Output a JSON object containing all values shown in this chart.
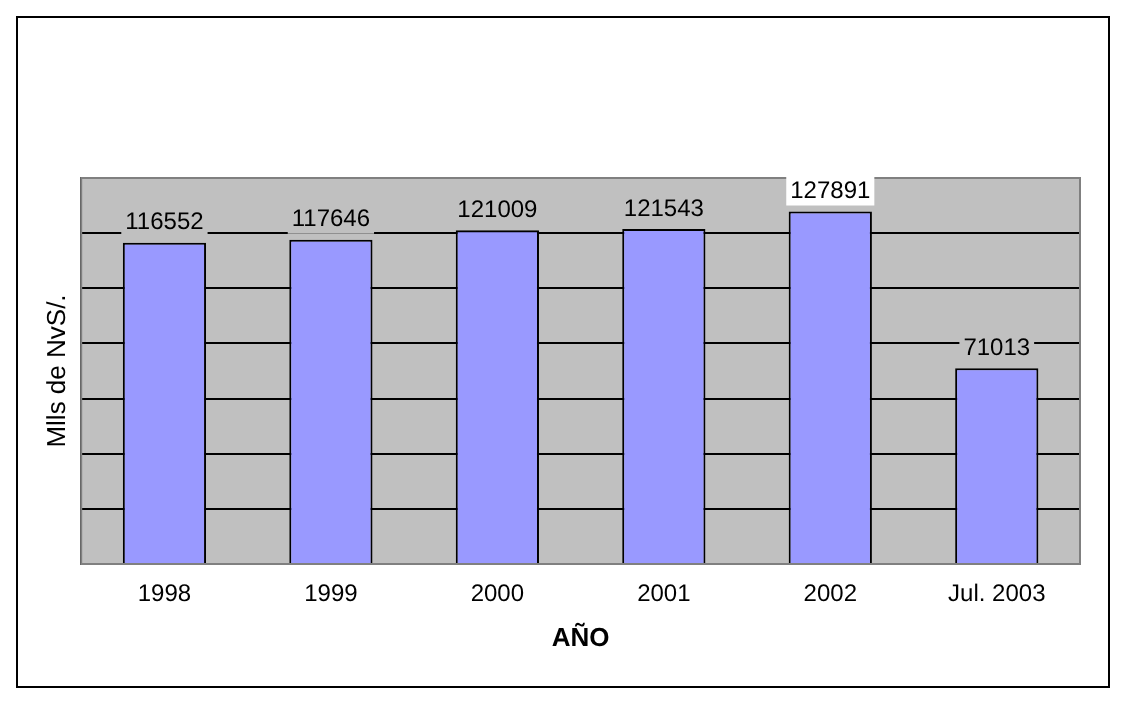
{
  "chart_data": {
    "type": "bar",
    "xlabel": "AÑO",
    "ylabel": "Mlls de NvS/.",
    "categories": [
      "1998",
      "1999",
      "2000",
      "2001",
      "2002",
      "Jul. 2003"
    ],
    "values": [
      116552,
      117646,
      121009,
      121543,
      127891,
      71013
    ],
    "color": "#9999ff",
    "ylim": [
      0,
      140000
    ],
    "yticks": [
      {
        "value": 0,
        "label": null
      },
      {
        "value": 20000,
        "label": null
      },
      {
        "value": 40000,
        "label": null
      },
      {
        "value": 60000,
        "label": null
      },
      {
        "value": 80000,
        "label": null
      },
      {
        "value": 100000,
        "label": null
      },
      {
        "value": 120000,
        "label": null
      },
      {
        "value": 140000,
        "label": null
      }
    ],
    "tick_labels": "x",
    "grid": "y",
    "data_labels": true,
    "legend": false
  }
}
